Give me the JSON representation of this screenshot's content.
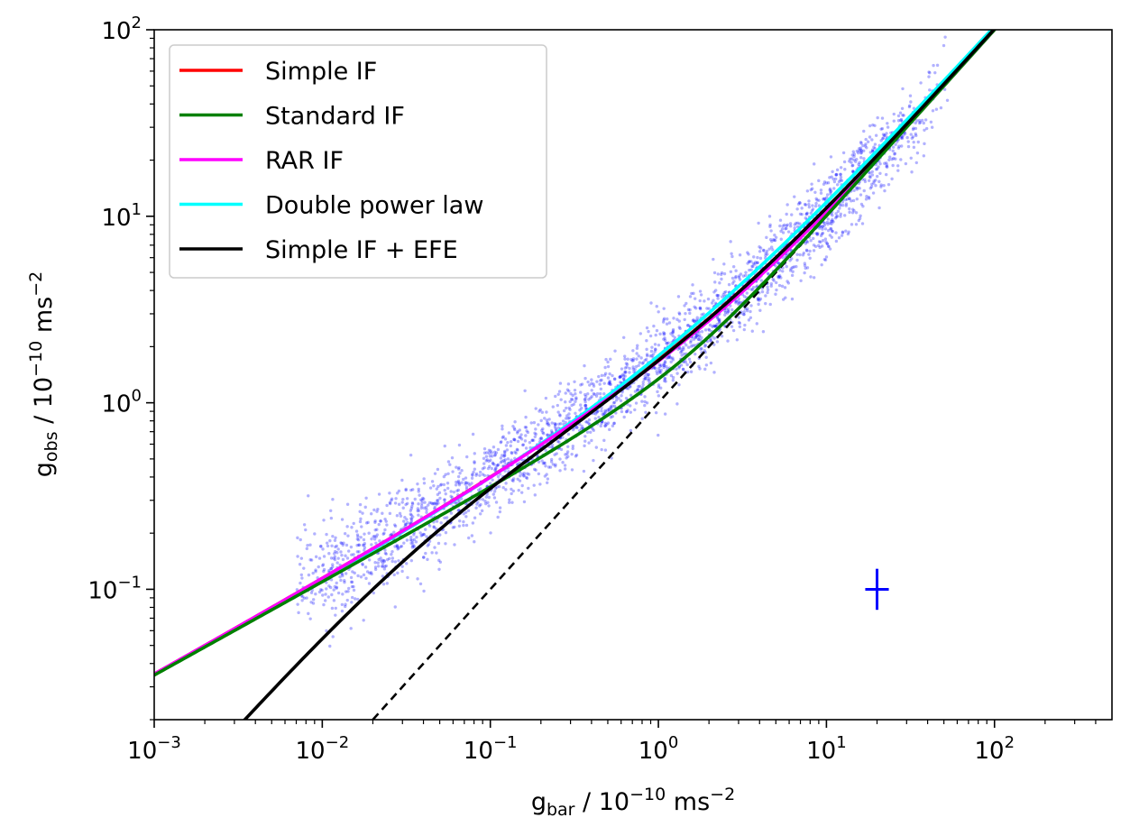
{
  "chart_data": {
    "type": "scatter",
    "x_scale": "log",
    "y_scale": "log",
    "xlim": [
      0.001,
      500
    ],
    "ylim": [
      0.02,
      100
    ],
    "x_label": {
      "base": "g",
      "sub": "bar",
      "rest": " / 10",
      "exp": "−10",
      "unit": " ms",
      "unit_exp": "−2"
    },
    "y_label": {
      "base": "g",
      "sub": "obs",
      "rest": " / 10",
      "exp": "−10",
      "unit": " ms",
      "unit_exp": "−2"
    },
    "x_ticks": [
      {
        "value": 0.001,
        "mantissa": "10",
        "exp": "−3"
      },
      {
        "value": 0.01,
        "mantissa": "10",
        "exp": "−2"
      },
      {
        "value": 0.1,
        "mantissa": "10",
        "exp": "−1"
      },
      {
        "value": 1,
        "mantissa": "10",
        "exp": "0"
      },
      {
        "value": 10,
        "mantissa": "10",
        "exp": "1"
      },
      {
        "value": 100,
        "mantissa": "10",
        "exp": "2"
      }
    ],
    "y_ticks": [
      {
        "value": 0.1,
        "mantissa": "10",
        "exp": "−1"
      },
      {
        "value": 1,
        "mantissa": "10",
        "exp": "0"
      },
      {
        "value": 10,
        "mantissa": "10",
        "exp": "1"
      },
      {
        "value": 100,
        "mantissa": "10",
        "exp": "2"
      }
    ],
    "legend_position": "top-left",
    "series": [
      {
        "name": "Simple IF",
        "color": "#ff0000",
        "model": "simple"
      },
      {
        "name": "Standard IF",
        "color": "#008000",
        "model": "standard"
      },
      {
        "name": "RAR IF",
        "color": "#ff00ff",
        "model": "rar"
      },
      {
        "name": "Double power law",
        "color": "#00ffff",
        "model": "double_power"
      },
      {
        "name": "Simple IF + EFE",
        "color": "#000000",
        "model": "simple_efe"
      }
    ],
    "reference_line": {
      "style": "dashed",
      "color": "#000000",
      "relation": "y = x"
    },
    "scatter": {
      "color": "#0000ff",
      "approx_points": 2700,
      "log_x_range": [
        -2.15,
        1.8
      ]
    },
    "error_marker": {
      "x": 20,
      "y": 0.1,
      "color": "#0000ff",
      "x_err_dex": 0.07,
      "y_err_dex": 0.11
    }
  }
}
